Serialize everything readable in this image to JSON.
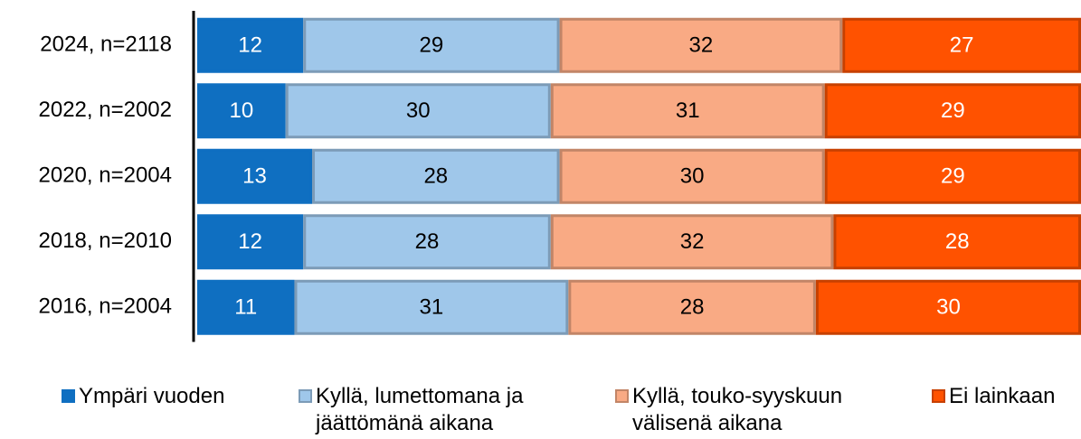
{
  "chart_data": {
    "type": "stacked_bar_horizontal",
    "categories": [
      "2024, n=2118",
      "2022, n=2002",
      "2020, n=2004",
      "2018, n=2010",
      "2016, n=2004"
    ],
    "series": [
      {
        "name": "Ympäri vuoden",
        "color": "#0f6fc1",
        "values": [
          12,
          10,
          13,
          12,
          11
        ]
      },
      {
        "name": "Kyllä, lumettomana ja jäättömänä aikana",
        "color": "#9fc7ea",
        "values": [
          29,
          30,
          28,
          28,
          31
        ]
      },
      {
        "name": "Kyllä, touko-syyskuun välisenä aikana",
        "color": "#f9aa84",
        "values": [
          32,
          31,
          30,
          32,
          28
        ]
      },
      {
        "name": "Ei lainkaan",
        "color": "#ff5200",
        "values": [
          27,
          29,
          29,
          28,
          30
        ]
      }
    ],
    "legend": "bottom"
  }
}
